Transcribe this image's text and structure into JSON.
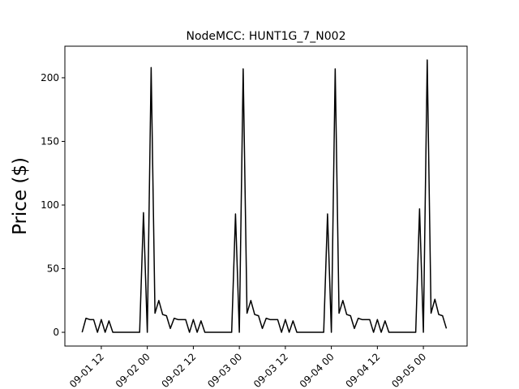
{
  "chart_data": {
    "type": "line",
    "title": "NodeMCC: HUNT1G_7_N002",
    "ylabel": "Price ($)",
    "x": [
      "09-01 07",
      "09-01 08",
      "09-01 09",
      "09-01 10",
      "09-01 11",
      "09-01 12",
      "09-01 13",
      "09-01 14",
      "09-01 15",
      "09-01 16",
      "09-01 17",
      "09-01 18",
      "09-01 19",
      "09-01 20",
      "09-01 21",
      "09-01 22",
      "09-01 23",
      "09-02 00",
      "09-02 01",
      "09-02 02",
      "09-02 03",
      "09-02 04",
      "09-02 05",
      "09-02 06",
      "09-02 07",
      "09-02 08",
      "09-02 09",
      "09-02 10",
      "09-02 11",
      "09-02 12",
      "09-02 13",
      "09-02 14",
      "09-02 15",
      "09-02 16",
      "09-02 17",
      "09-02 18",
      "09-02 19",
      "09-02 20",
      "09-02 21",
      "09-02 22",
      "09-02 23",
      "09-03 00",
      "09-03 01",
      "09-03 02",
      "09-03 03",
      "09-03 04",
      "09-03 05",
      "09-03 06",
      "09-03 07",
      "09-03 08",
      "09-03 09",
      "09-03 10",
      "09-03 11",
      "09-03 12",
      "09-03 13",
      "09-03 14",
      "09-03 15",
      "09-03 16",
      "09-03 17",
      "09-03 18",
      "09-03 19",
      "09-03 20",
      "09-03 21",
      "09-03 22",
      "09-03 23",
      "09-04 00",
      "09-04 01",
      "09-04 02",
      "09-04 03",
      "09-04 04",
      "09-04 05",
      "09-04 06",
      "09-04 07",
      "09-04 08",
      "09-04 09",
      "09-04 10",
      "09-04 11",
      "09-04 12",
      "09-04 13",
      "09-04 14",
      "09-04 15",
      "09-04 16",
      "09-04 17",
      "09-04 18",
      "09-04 19",
      "09-04 20",
      "09-04 21",
      "09-04 22",
      "09-04 23",
      "09-05 00",
      "09-05 01",
      "09-05 02",
      "09-05 03",
      "09-05 04",
      "09-05 05",
      "09-05 06"
    ],
    "series": [
      {
        "name": "price",
        "color": "#000000",
        "values": [
          0,
          11,
          10,
          10,
          0,
          10,
          0,
          9,
          0,
          0,
          0,
          0,
          0,
          0,
          0,
          0,
          94,
          0,
          208,
          15,
          25,
          14,
          13,
          3,
          11,
          10,
          10,
          10,
          0,
          10,
          0,
          9,
          0,
          0,
          0,
          0,
          0,
          0,
          0,
          0,
          93,
          0,
          207,
          15,
          25,
          14,
          13,
          3,
          11,
          10,
          10,
          10,
          0,
          10,
          0,
          9,
          0,
          0,
          0,
          0,
          0,
          0,
          0,
          0,
          93,
          0,
          207,
          15,
          25,
          14,
          13,
          3,
          11,
          10,
          10,
          10,
          0,
          10,
          0,
          9,
          0,
          0,
          0,
          0,
          0,
          0,
          0,
          0,
          97,
          0,
          214,
          15,
          26,
          14,
          13,
          3
        ]
      }
    ],
    "xlim": [
      "09-01 02:30",
      "09-05 11:24"
    ],
    "xticks": [
      "09-01 12",
      "09-02 00",
      "09-02 12",
      "09-03 00",
      "09-03 12",
      "09-04 00",
      "09-04 12",
      "09-05 00"
    ],
    "ylim": [
      -10.8,
      224.8
    ],
    "yticks": [
      0,
      50,
      100,
      150,
      200
    ],
    "grid": false
  }
}
